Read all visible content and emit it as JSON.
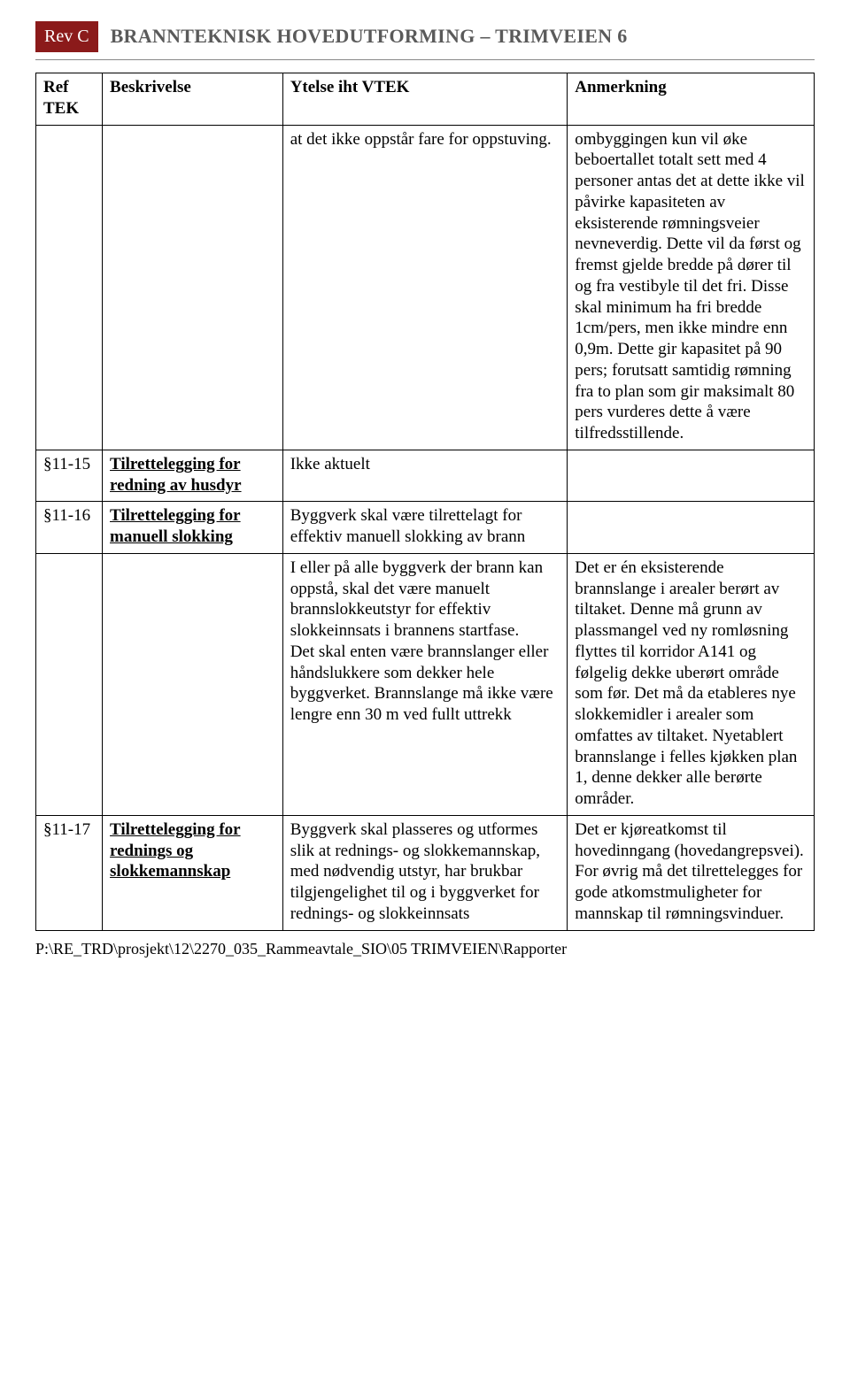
{
  "header": {
    "rev_badge": "Rev C",
    "title": "BRANNTEKNISK HOVEDUTFORMING – TRIMVEIEN 6"
  },
  "table": {
    "headers": {
      "ref": "Ref TEK",
      "besk": "Beskrivelse",
      "ytelse": "Ytelse iht VTEK",
      "anm": "Anmerkning"
    },
    "rows": [
      {
        "ref": "",
        "besk": "",
        "ytelse": "at det ikke oppstår fare for oppstuving.",
        "anm": "ombyggingen kun vil øke beboertallet totalt sett med 4 personer antas det at dette ikke vil påvirke kapasiteten av eksisterende rømningsveier nevneverdig. Dette vil da først og fremst gjelde bredde på dører til og fra vestibyle til det fri. Disse skal minimum ha fri bredde 1cm/pers, men ikke mindre enn 0,9m. Dette gir kapasitet på 90 pers; forutsatt samtidig rømning fra to plan som gir maksimalt 80 pers vurderes dette å være tilfredsstillende."
      },
      {
        "ref": "§11-15",
        "besk": "Tilrettelegging for redning av husdyr",
        "ytelse": "Ikke aktuelt",
        "anm": ""
      },
      {
        "ref": "§11-16",
        "besk": "Tilrettelegging for manuell slokking",
        "ytelse": "Byggverk skal være tilrettelagt for effektiv manuell slokking av brann",
        "anm": ""
      },
      {
        "ref": "",
        "besk": "",
        "ytelse": "I eller på alle byggverk der brann kan oppstå, skal det være manuelt brannslokkeutstyr for effektiv slokkeinnsats i brannens startfase.\nDet skal enten være brannslanger eller håndslukkere som dekker hele byggverket. Brannslange må ikke være lengre enn 30 m ved fullt uttrekk",
        "anm": "Det er én eksisterende brannslange i arealer berørt av tiltaket. Denne må grunn av plassmangel ved ny romløsning flyttes til korridor A141 og følgelig dekke uberørt område som før. Det må da etableres nye slokkemidler i arealer som omfattes av tiltaket. Nyetablert brannslange i felles kjøkken plan 1, denne dekker alle berørte områder."
      },
      {
        "ref": "§11-17",
        "besk": "Tilrettelegging for rednings og slokkemannskap",
        "ytelse": "Byggverk skal plasseres og utformes slik at rednings- og slokkemannskap, med nødvendig utstyr, har brukbar tilgjengelighet til og i byggverket for rednings- og slokkeinnsats",
        "anm": "Det er kjøreatkomst til hovedinngang (hovedangrepsvei). For øvrig må det tilrettelegges for gode atkomstmuligheter for mannskap til rømningsvinduer."
      }
    ]
  },
  "footer": {
    "path": "P:\\RE_TRD\\prosjekt\\12\\2270_035_Rammeavtale_SIO\\05 TRIMVEIEN\\Rapporter"
  }
}
